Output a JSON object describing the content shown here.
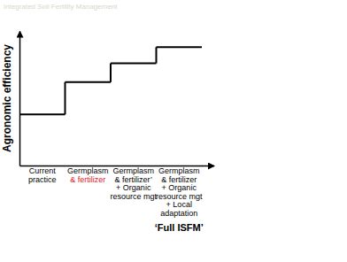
{
  "chart_data": {
    "type": "step",
    "title": "Integrated Soil Fertility Management",
    "y_label": "Agronomic efficiency",
    "categories": [
      [
        "Current",
        "practice"
      ],
      [
        "Germplasm",
        "& fertilizer"
      ],
      [
        "Germplasm",
        "& fertilizer’",
        "+ Organic",
        "resource mgt"
      ],
      [
        "Germplasm",
        "& fertilizer",
        "+ Organic",
        "resource mgt",
        "+ Local",
        "adaptation"
      ]
    ],
    "values": [
      3.8,
      6.2,
      7.6,
      8.8
    ],
    "color": "#000000",
    "ylim": [
      0,
      10
    ],
    "tick_labels": false,
    "annotations": [
      "‘Full ISFM’"
    ]
  }
}
